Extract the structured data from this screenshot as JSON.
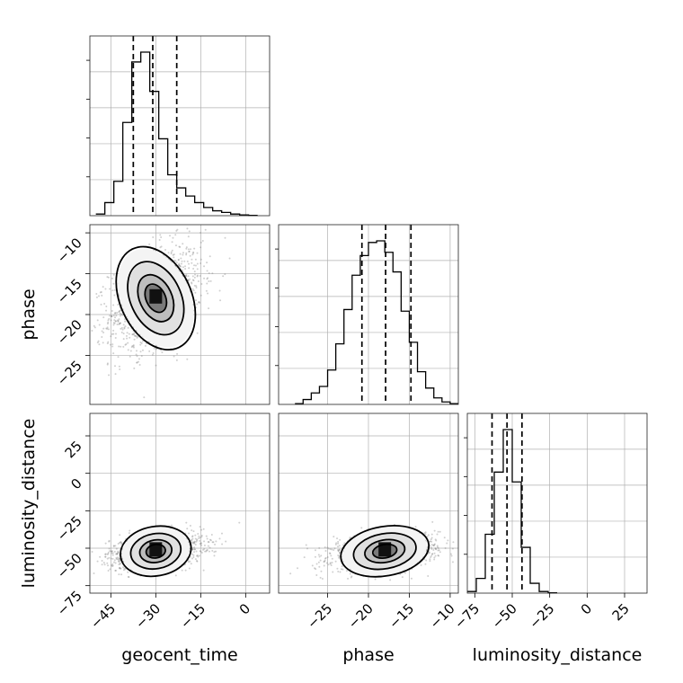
{
  "chart_data": {
    "type": "corner",
    "parameters": [
      "geocent_time",
      "phase",
      "luminosity_distance"
    ],
    "ranges": {
      "geocent_time": [
        -52,
        8
      ],
      "phase": [
        -31,
        -9
      ],
      "luminosity_distance": [
        -80,
        40
      ]
    },
    "ticks": {
      "geocent_time": [
        -45,
        -30,
        -15,
        0
      ],
      "phase": [
        -25,
        -20,
        -15,
        -10
      ],
      "luminosity_distance": [
        -75,
        -50,
        -25,
        0,
        25
      ]
    },
    "tick_labels": {
      "geocent_time": [
        "−45",
        "−30",
        "−15",
        "0"
      ],
      "phase": [
        "−25",
        "−20",
        "−15",
        "−10"
      ],
      "luminosity_distance": [
        "−75",
        "−50",
        "−25",
        "0",
        "25"
      ]
    },
    "marginals": {
      "geocent_time": {
        "bin_edges": [
          -50,
          -47,
          -44,
          -41,
          -38,
          -35,
          -32,
          -29,
          -26,
          -23,
          -20,
          -17,
          -14,
          -11,
          -8,
          -5,
          -2,
          1,
          4
        ],
        "counts": [
          0.01,
          0.08,
          0.21,
          0.57,
          0.94,
          1.0,
          0.76,
          0.47,
          0.25,
          0.17,
          0.12,
          0.08,
          0.05,
          0.03,
          0.02,
          0.01,
          0.005,
          0.002
        ],
        "quantiles": [
          -37.5,
          -31.0,
          -23.0
        ]
      },
      "phase": {
        "bin_edges": [
          -29,
          -28,
          -27,
          -26,
          -25,
          -24,
          -23,
          -22,
          -21,
          -20,
          -19,
          -18,
          -17,
          -16,
          -15,
          -14,
          -13,
          -12,
          -11,
          -10,
          -9
        ],
        "counts": [
          0.005,
          0.03,
          0.07,
          0.11,
          0.21,
          0.37,
          0.58,
          0.79,
          0.91,
          0.99,
          1.0,
          0.93,
          0.81,
          0.57,
          0.38,
          0.2,
          0.1,
          0.04,
          0.015,
          0.005
        ],
        "quantiles": [
          -20.8,
          -17.9,
          -14.8
        ]
      },
      "luminosity_distance": {
        "bin_edges": [
          -80,
          -74,
          -68,
          -62,
          -56,
          -50,
          -44,
          -38,
          -32,
          -26,
          -20
        ],
        "counts": [
          0.01,
          0.09,
          0.36,
          0.74,
          1.0,
          0.68,
          0.28,
          0.06,
          0.01,
          0.002
        ],
        "quantiles": [
          -63.5,
          -53.5,
          -43.5
        ]
      }
    },
    "grid": true,
    "quantile_line_style": "dashed"
  }
}
